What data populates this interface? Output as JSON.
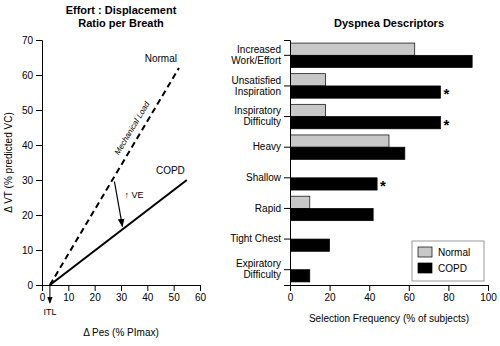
{
  "chart_data": [
    {
      "type": "line",
      "title": "Effort : Displacement\nRatio per Breath",
      "x_label": "Δ Pes (% PImax)",
      "y_label": "Δ VT (% predicted VC)",
      "xlim": [
        0,
        60
      ],
      "xticks": [
        0,
        10,
        20,
        30,
        40,
        50,
        60
      ],
      "ylim": [
        0,
        70
      ],
      "yticks": [
        0,
        10,
        20,
        30,
        40,
        50,
        60,
        70
      ],
      "grid": false,
      "series": [
        {
          "name": "Normal",
          "x": [
            3,
            52
          ],
          "values": [
            0,
            62
          ],
          "color": "#000000",
          "line_style": "dashed"
        },
        {
          "name": "COPD",
          "x": [
            3,
            55
          ],
          "values": [
            0,
            30
          ],
          "color": "#000000",
          "line_style": "solid"
        }
      ],
      "annotations": [
        "ITL",
        "Mechanical Load",
        "↑ VE"
      ]
    },
    {
      "type": "bar",
      "orientation": "horizontal",
      "title": "Dyspnea Descriptors",
      "x_label": "Selection Frequency (% of subjects)",
      "categories": [
        "Increased\nWork/Effort",
        "Unsatisfied\nInspiration",
        "Inspiratory\nDifficulty",
        "Heavy",
        "Shallow",
        "Rapid",
        "Tight Chest",
        "Expiratory\nDifficulty"
      ],
      "series": [
        {
          "name": "Normal",
          "color": "#c8c8c8",
          "values": [
            63,
            18,
            18,
            50,
            0,
            10,
            0,
            0
          ]
        },
        {
          "name": "COPD",
          "color": "#000000",
          "values": [
            92,
            76,
            76,
            58,
            44,
            42,
            20,
            10
          ]
        }
      ],
      "xlim": [
        0,
        100
      ],
      "xticks": [
        0,
        20,
        40,
        60,
        80,
        100
      ],
      "grid": false,
      "legend": "lower right",
      "annotations": [
        {
          "text": "*",
          "category": "Unsatisfied\nInspiration"
        },
        {
          "text": "*",
          "category": "Inspiratory\nDifficulty"
        },
        {
          "text": "*",
          "category": "Shallow"
        }
      ]
    }
  ]
}
